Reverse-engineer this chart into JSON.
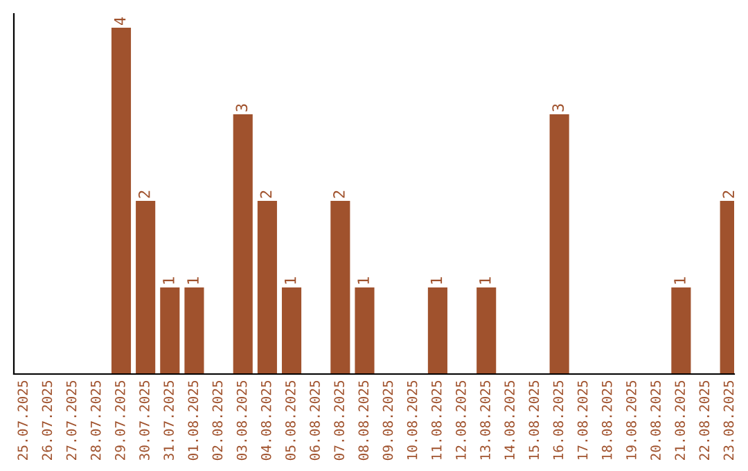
{
  "chart_data": {
    "type": "bar",
    "categories": [
      "25.07.2025",
      "26.07.2025",
      "27.07.2025",
      "28.07.2025",
      "29.07.2025",
      "30.07.2025",
      "31.07.2025",
      "01.08.2025",
      "02.08.2025",
      "03.08.2025",
      "04.08.2025",
      "05.08.2025",
      "06.08.2025",
      "07.08.2025",
      "08.08.2025",
      "09.08.2025",
      "10.08.2025",
      "11.08.2025",
      "12.08.2025",
      "13.08.2025",
      "14.08.2025",
      "15.08.2025",
      "16.08.2025",
      "17.08.2025",
      "18.08.2025",
      "19.08.2025",
      "20.08.2025",
      "21.08.2025",
      "22.08.2025",
      "23.08.2025"
    ],
    "values": [
      0,
      0,
      0,
      0,
      4,
      2,
      1,
      1,
      0,
      3,
      2,
      1,
      0,
      2,
      1,
      0,
      0,
      1,
      0,
      1,
      0,
      0,
      3,
      0,
      0,
      0,
      0,
      1,
      0,
      2
    ],
    "value_labels": [
      null,
      null,
      null,
      null,
      "4",
      "2",
      "1",
      "1",
      null,
      "3",
      "2",
      "1",
      null,
      "2",
      "1",
      null,
      null,
      "1",
      null,
      "1",
      null,
      null,
      "3",
      null,
      null,
      null,
      null,
      "1",
      null,
      "2"
    ],
    "color": "#a0522d",
    "ylim": [
      0,
      4.16
    ],
    "grid": false,
    "legend": false
  }
}
